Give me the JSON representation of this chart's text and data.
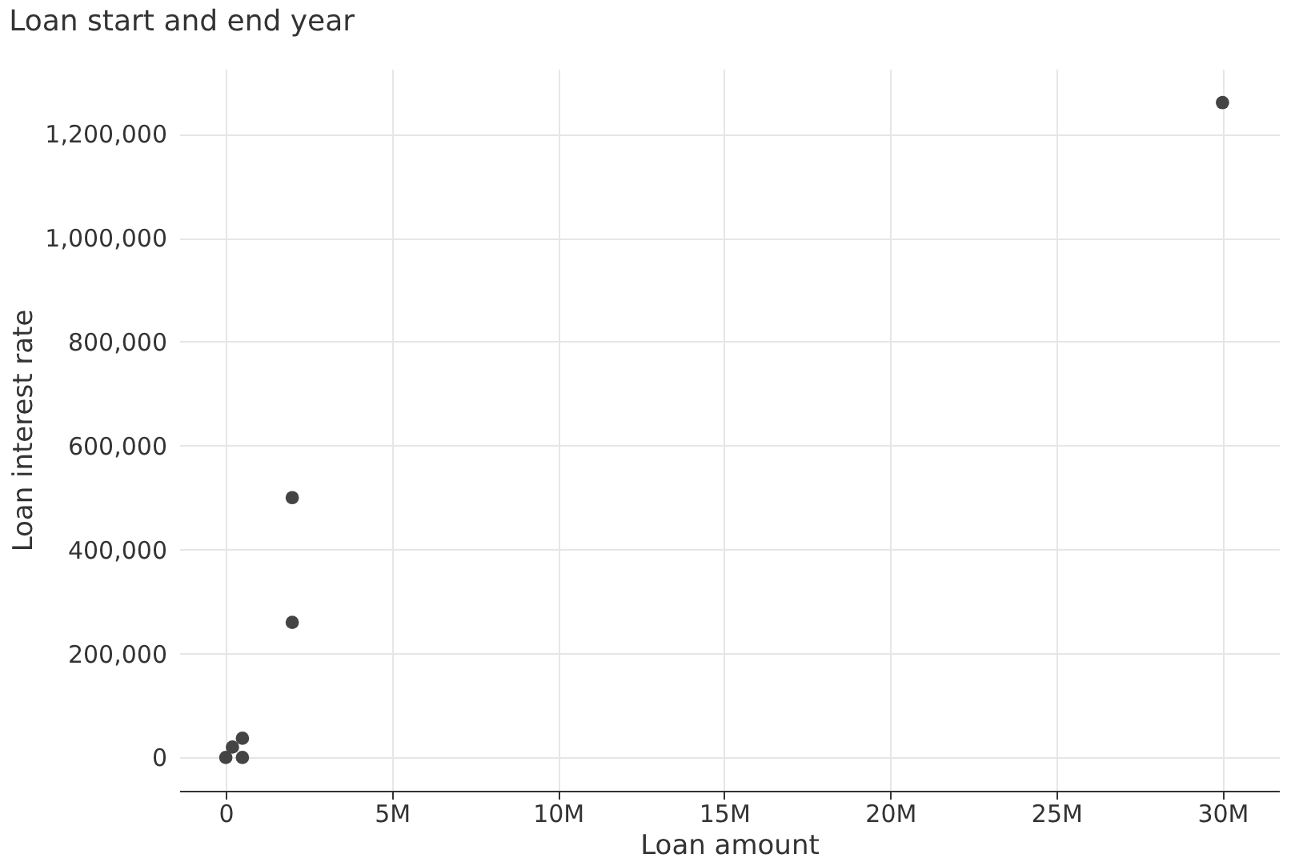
{
  "chart_data": {
    "type": "scatter",
    "title": "Loan start and end year",
    "xlabel": "Loan amount",
    "ylabel": "Loan interest rate",
    "x": [
      0,
      200000,
      500000,
      500000,
      2000000,
      2000000,
      30000000
    ],
    "series": [
      {
        "color": "#444444",
        "values": [
          0,
          20000,
          37000,
          0,
          260000,
          500000,
          1260000
        ]
      }
    ],
    "xlim": [
      -1400000,
      31700000
    ],
    "xticks": [
      {
        "value": 0,
        "label": "0"
      },
      {
        "value": 5000000,
        "label": "5M"
      },
      {
        "value": 10000000,
        "label": "10M"
      },
      {
        "value": 15000000,
        "label": "15M"
      },
      {
        "value": 20000000,
        "label": "20M"
      },
      {
        "value": 25000000,
        "label": "25M"
      },
      {
        "value": 30000000,
        "label": "30M"
      }
    ],
    "ylim": [
      -64000,
      1325000
    ],
    "yticks": [
      0,
      {
        "value": 200000,
        "label": "200,000"
      },
      {
        "value": 400000,
        "label": "400,000"
      },
      {
        "value": 600000,
        "label": "600,000"
      },
      {
        "value": 800000,
        "label": "800,000"
      },
      {
        "value": 1000000,
        "label": "1,000,000"
      },
      {
        "value": 1200000,
        "label": "1,200,000"
      }
    ],
    "grid": true,
    "marker": "circle"
  }
}
